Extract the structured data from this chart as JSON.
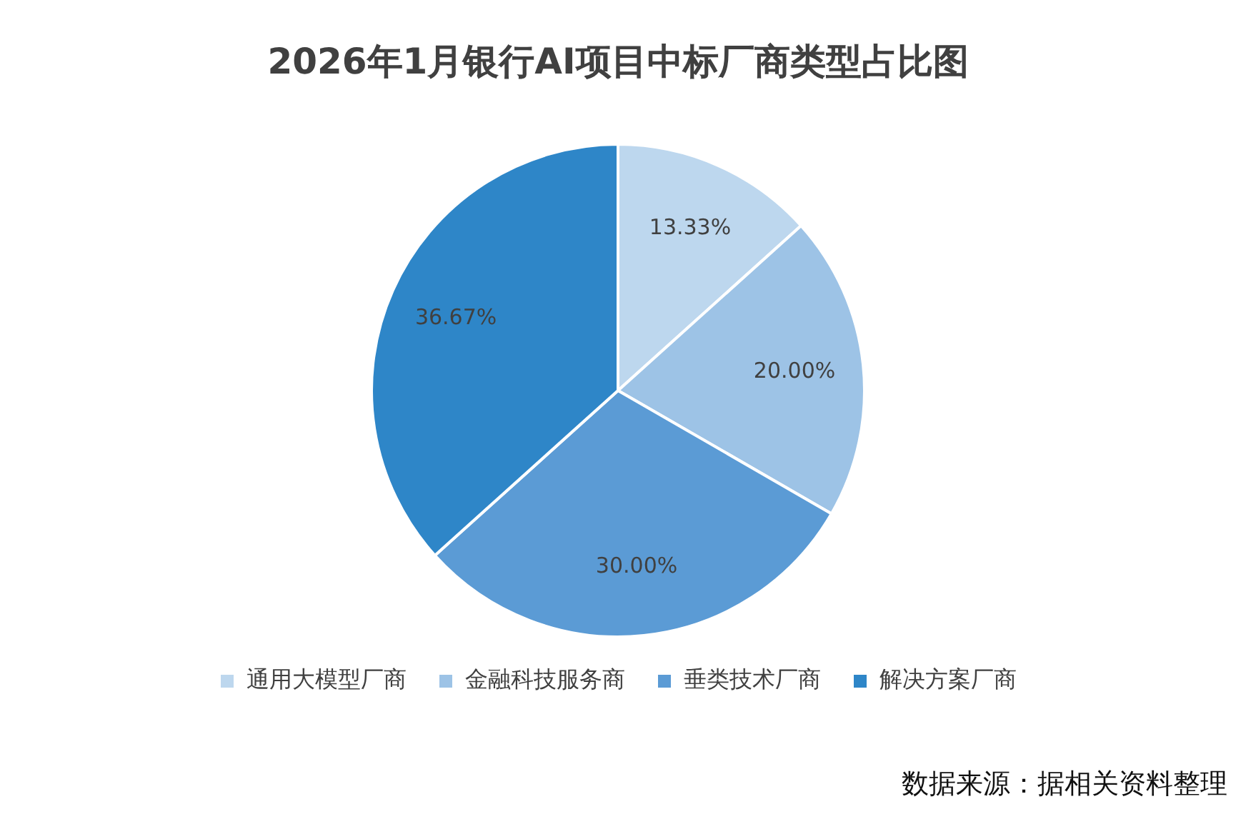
{
  "chart_data": {
    "type": "pie",
    "title": "2026年1月银行AI项目中标厂商类型占比图",
    "categories": [
      "通用大模型厂商",
      "金融科技服务商",
      "垂类技术厂商",
      "解决方案厂商"
    ],
    "values": [
      13.33,
      20.0,
      30.0,
      36.67
    ],
    "value_labels": [
      "13.33%",
      "20.00%",
      "30.00%",
      "36.67%"
    ],
    "colors": [
      "#bdd7ee",
      "#9dc3e6",
      "#5b9bd5",
      "#2e86c8"
    ],
    "legend": "bottom",
    "annotations": [
      "数据来源：据相关资料整理"
    ]
  }
}
